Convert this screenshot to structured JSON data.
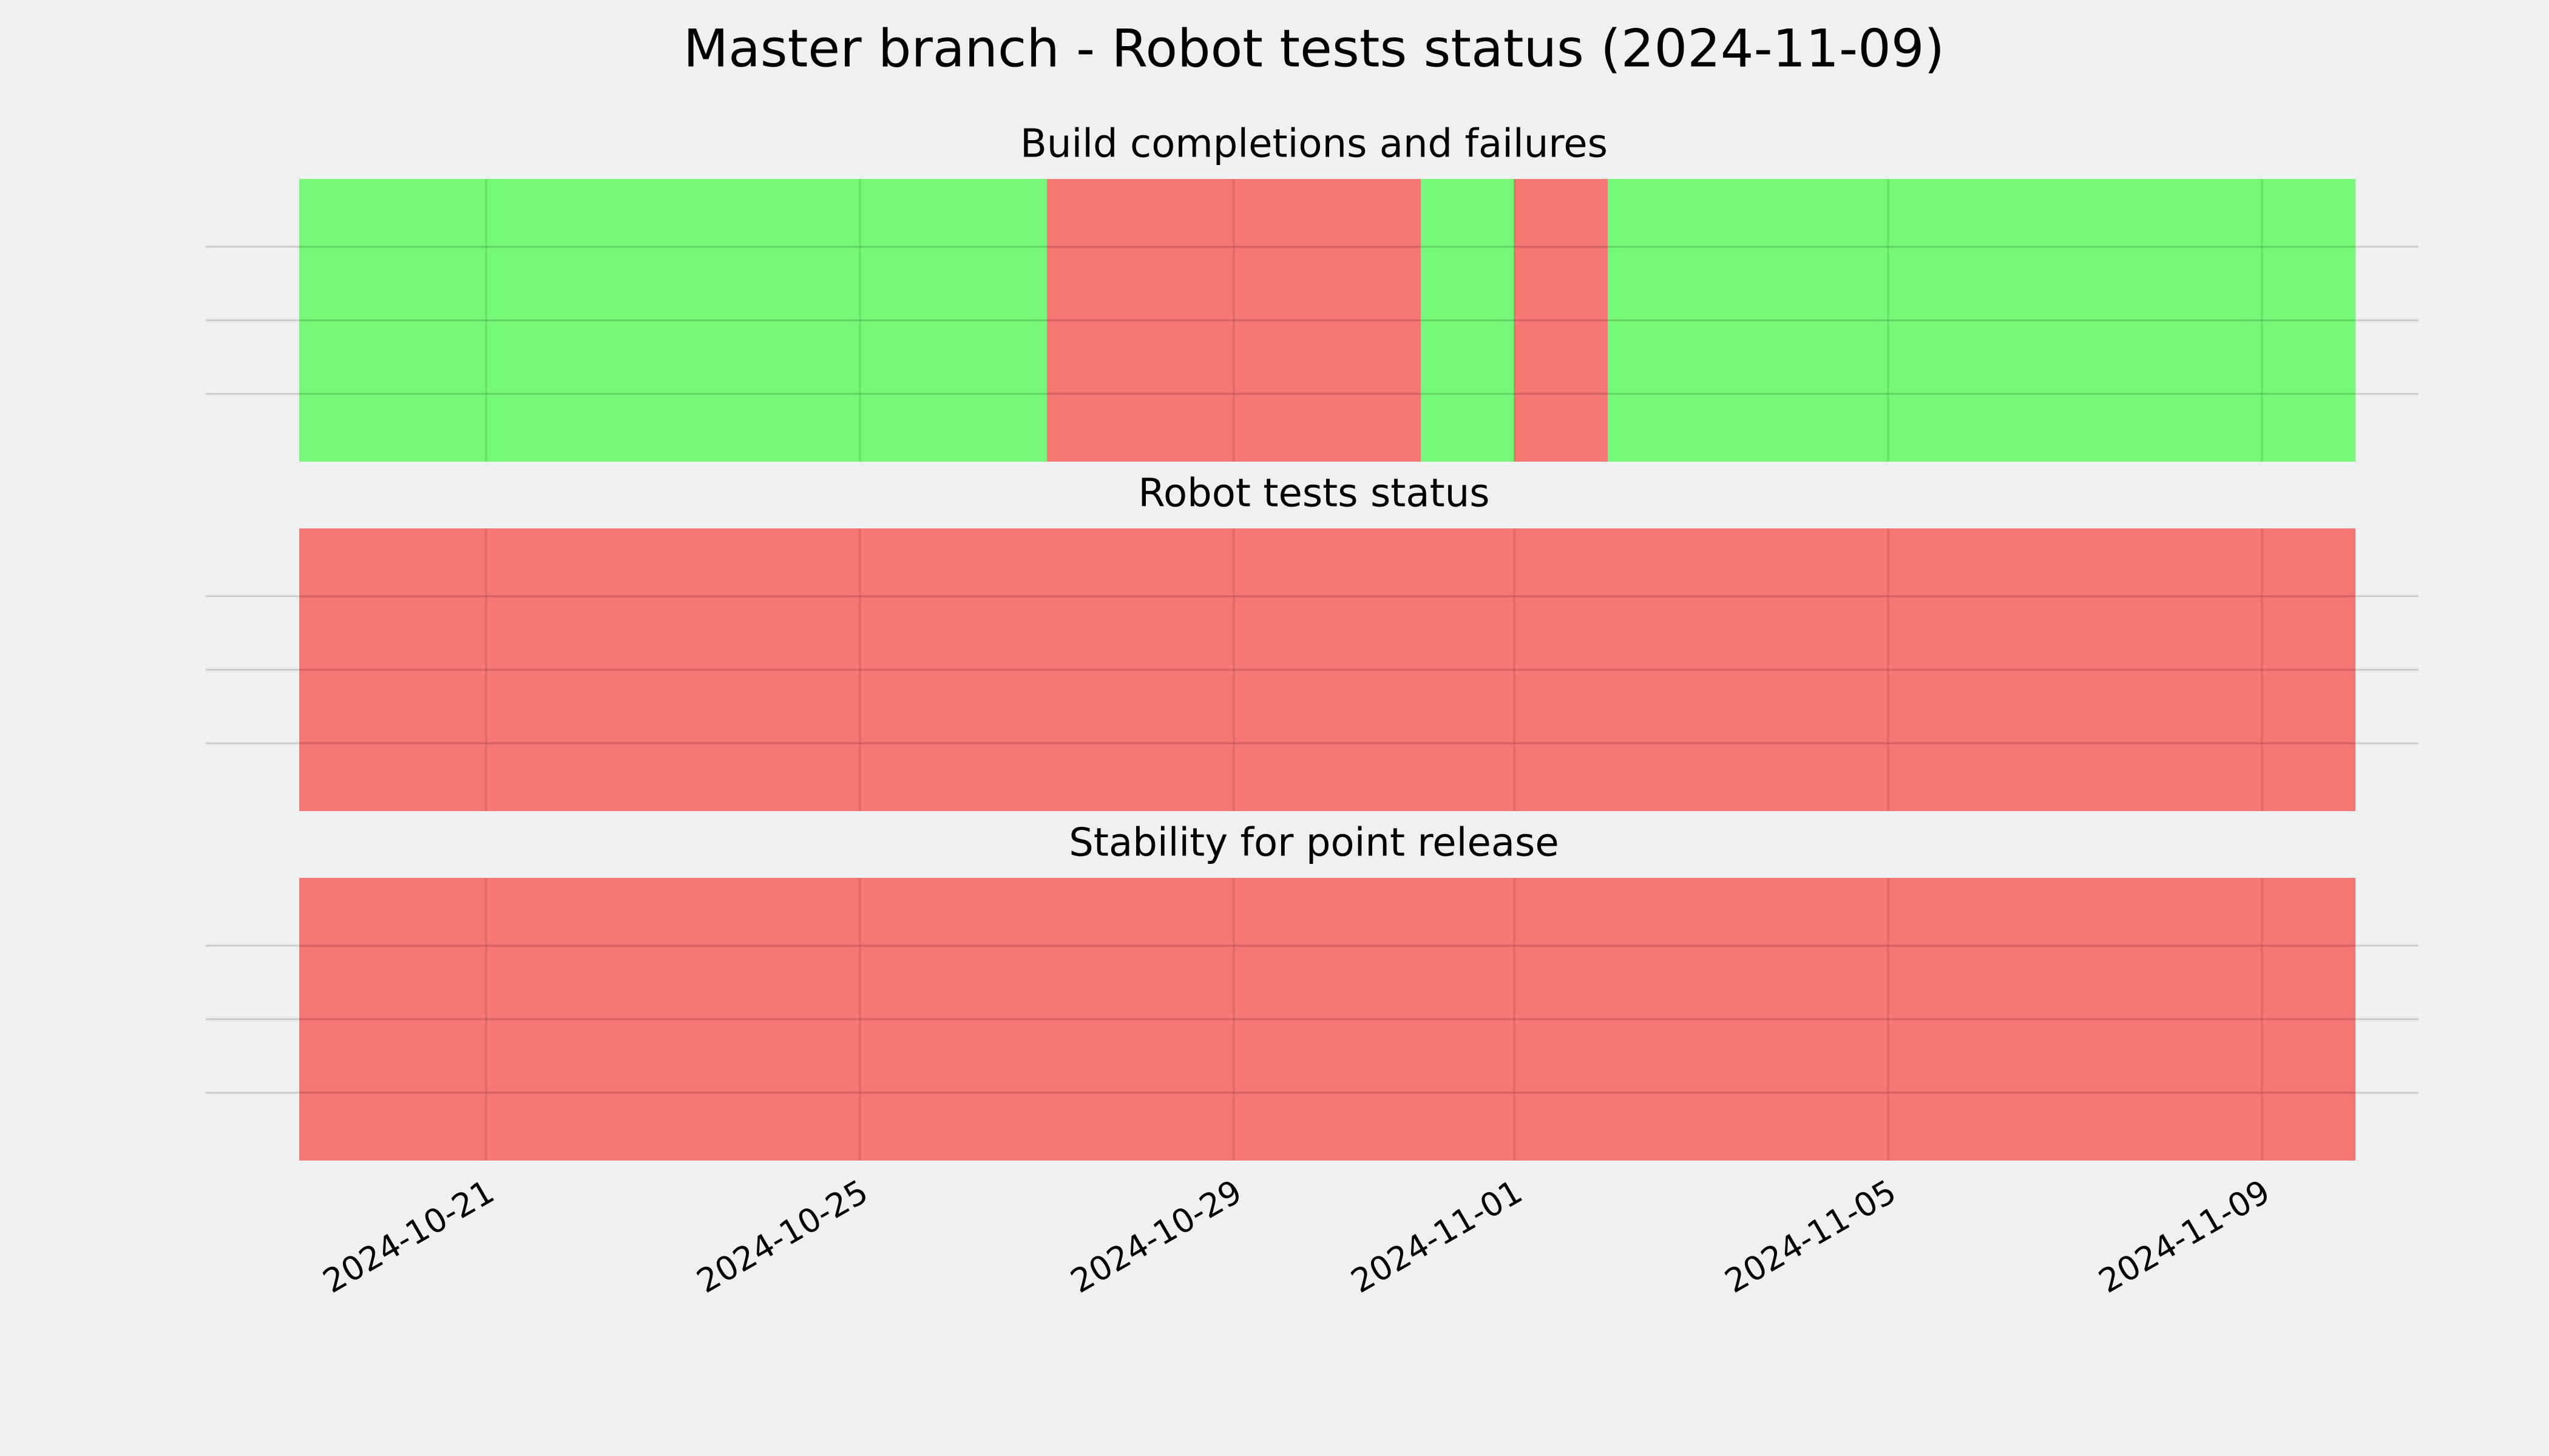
{
  "chart_data": {
    "type": "timeline",
    "title": "Master branch - Robot tests status (2024-11-09)",
    "xlim": [
      "2024-10-18",
      "2024-11-11"
    ],
    "xticks": [
      "2024-10-21",
      "2024-10-25",
      "2024-10-29",
      "2024-11-01",
      "2024-11-05",
      "2024-11-09"
    ],
    "grid": true,
    "panels": [
      {
        "title": "Build completions and failures",
        "segments": [
          {
            "start": "2024-10-19",
            "end": "2024-10-27",
            "color": "#75f878"
          },
          {
            "start": "2024-10-27",
            "end": "2024-10-31",
            "color": "#f67674"
          },
          {
            "start": "2024-10-31",
            "end": "2024-11-01",
            "color": "#75f878"
          },
          {
            "start": "2024-11-01",
            "end": "2024-11-02",
            "color": "#f67674"
          },
          {
            "start": "2024-11-02",
            "end": "2024-11-10",
            "color": "#75f878"
          }
        ]
      },
      {
        "title": "Robot tests status",
        "segments": [
          {
            "start": "2024-10-19",
            "end": "2024-11-10",
            "color": "#f67674"
          }
        ]
      },
      {
        "title": "Stability for point release",
        "segments": [
          {
            "start": "2024-10-19",
            "end": "2024-11-10",
            "color": "#f67674"
          }
        ]
      }
    ]
  }
}
